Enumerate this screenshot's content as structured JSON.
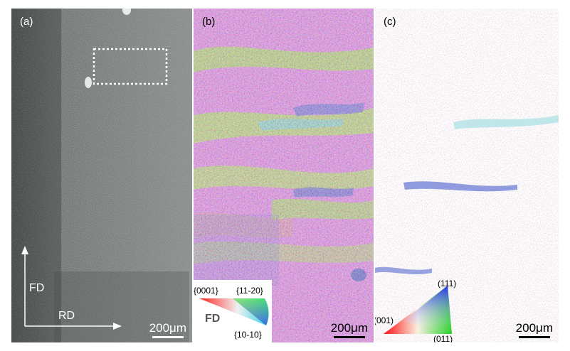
{
  "panels": {
    "a": {
      "label": "(a)",
      "scale_text": "200μm",
      "axis_vertical": "FD",
      "axis_horizontal": "RD"
    },
    "b": {
      "label": "(b)",
      "scale_text": "200μm",
      "legend": {
        "top_left": "{0001}",
        "top_right": "{11-20}",
        "bottom_right": "{10-10}",
        "center": "FD"
      }
    },
    "c": {
      "label": "(c)",
      "scale_text": "200μm",
      "legend": {
        "top": "(111)",
        "left": "(001)",
        "right": "(011)"
      }
    }
  },
  "colors": {
    "sem_base": "#7a7f7c",
    "ebsd_magenta": "#d76be8",
    "ebsd_green": "#8ee63a",
    "ipf_white": "#ffffff"
  }
}
